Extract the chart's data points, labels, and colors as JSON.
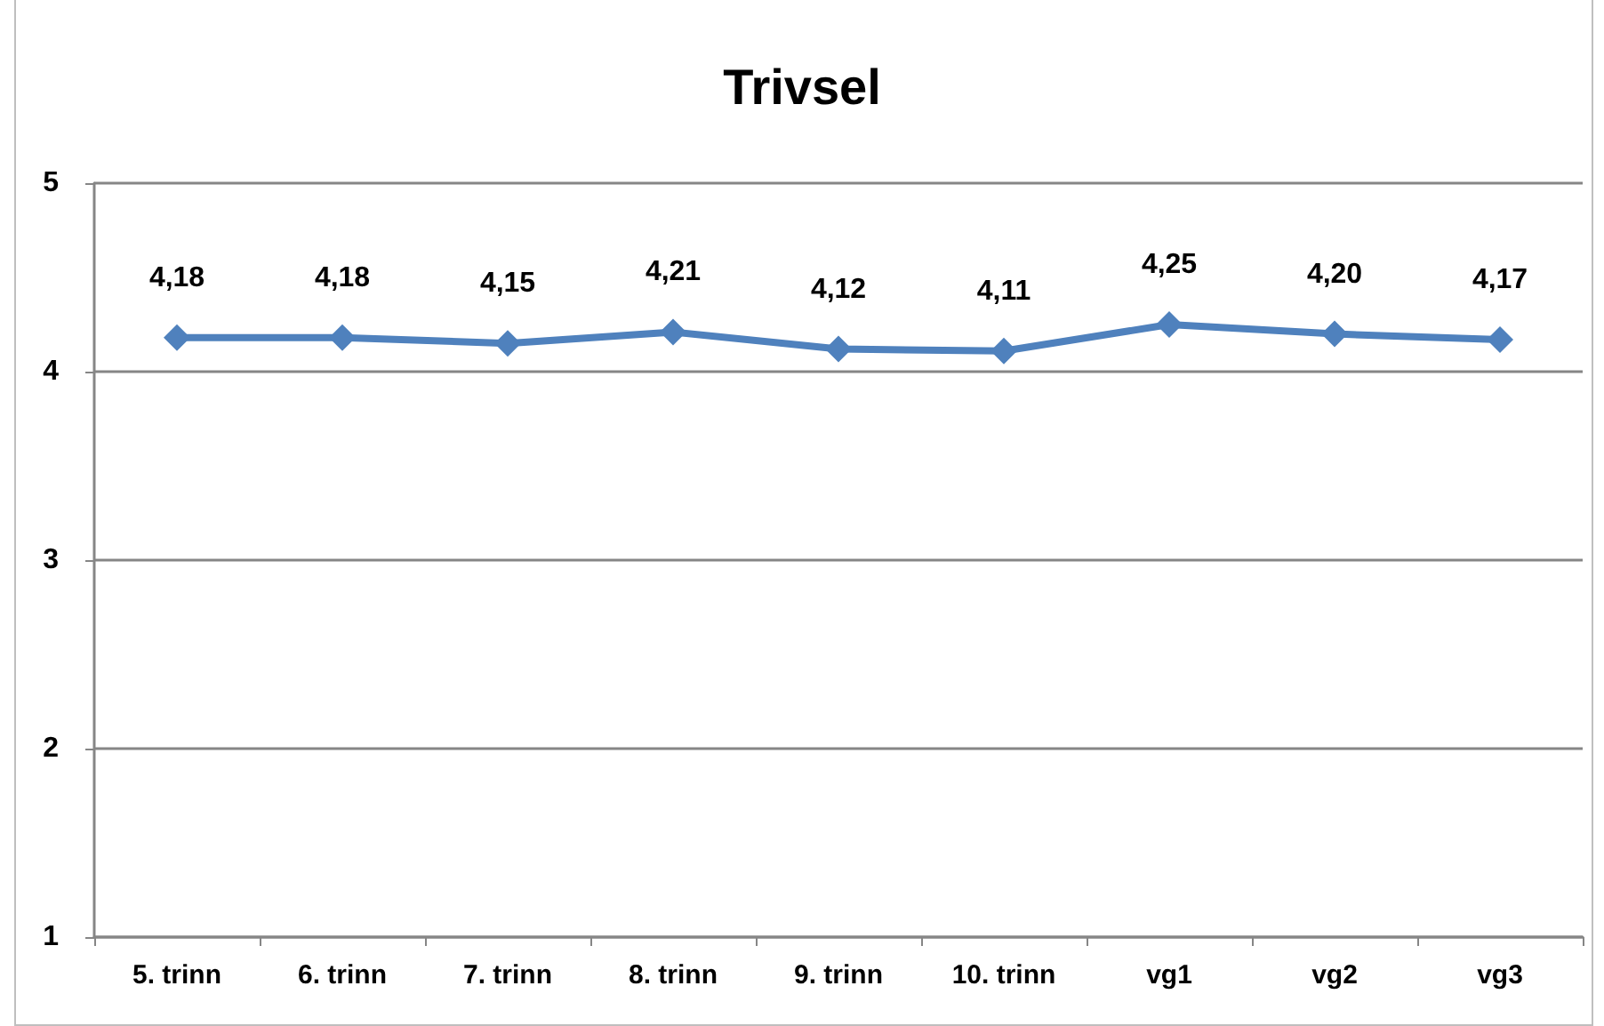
{
  "chart_data": {
    "type": "line",
    "title": "Trivsel",
    "categories": [
      "5. trinn",
      "6. trinn",
      "7. trinn",
      "8. trinn",
      "9. trinn",
      "10. trinn",
      "vg1",
      "vg2",
      "vg3"
    ],
    "series": [
      {
        "color": "#4f81bd",
        "values": [
          4.18,
          4.18,
          4.15,
          4.21,
          4.12,
          4.11,
          4.25,
          4.2,
          4.17
        ],
        "value_labels": [
          "4,18",
          "4,18",
          "4,15",
          "4,21",
          "4,12",
          "4,11",
          "4,25",
          "4,20",
          "4,17"
        ]
      }
    ],
    "ylim": [
      1,
      5
    ],
    "yticks": [
      1,
      2,
      3,
      4,
      5
    ],
    "grid": "y",
    "marker": "diamond",
    "line_style": "solid"
  }
}
